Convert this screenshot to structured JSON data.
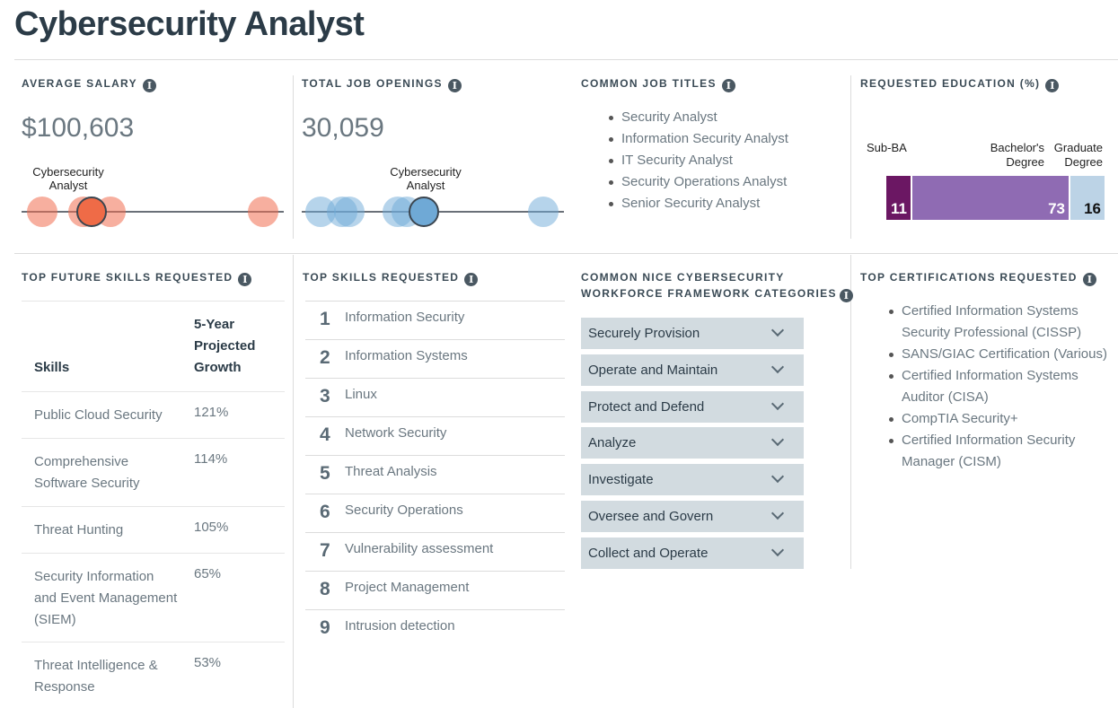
{
  "page_title": "Cybersecurity Analyst",
  "info_glyph": "i",
  "salary": {
    "heading": "AVERAGE SALARY",
    "value": "$100,603",
    "highlight_label": "Cybersecurity Analyst"
  },
  "openings": {
    "heading": "TOTAL JOB OPENINGS",
    "value": "30,059",
    "highlight_label": "Cybersecurity Analyst"
  },
  "job_titles": {
    "heading": "COMMON JOB TITLES",
    "items": [
      "Security Analyst",
      "Information Security Analyst",
      "IT Security Analyst",
      "Security Operations Analyst",
      "Senior Security Analyst"
    ]
  },
  "education": {
    "heading": "REQUESTED EDUCATION (%)",
    "labels": {
      "sub_ba": "Sub-BA",
      "bachelors": "Bachelor's Degree",
      "graduate": "Graduate Degree"
    },
    "values": {
      "sub_ba": "11",
      "bachelors": "73",
      "graduate": "16"
    },
    "colors": {
      "sub_ba": "#6b1763",
      "bachelors": "#8f6bb3",
      "graduate": "#bcd3e6"
    }
  },
  "future_skills": {
    "heading": "TOP FUTURE SKILLS REQUESTED",
    "col_skills": "Skills",
    "col_growth": "5-Year Projected Growth",
    "rows": [
      {
        "skill": "Public Cloud Security",
        "growth": "121%"
      },
      {
        "skill": "Comprehensive Software Security",
        "growth": "114%"
      },
      {
        "skill": "Threat Hunting",
        "growth": "105%"
      },
      {
        "skill": "Security Information and Event Management (SIEM)",
        "growth": "65%"
      },
      {
        "skill": "Threat Intelligence & Response",
        "growth": "53%"
      }
    ]
  },
  "top_skills": {
    "heading": "TOP SKILLS REQUESTED",
    "items": [
      {
        "n": "1",
        "label": "Information Security"
      },
      {
        "n": "2",
        "label": "Information Systems"
      },
      {
        "n": "3",
        "label": "Linux"
      },
      {
        "n": "4",
        "label": "Network Security"
      },
      {
        "n": "5",
        "label": "Threat Analysis"
      },
      {
        "n": "6",
        "label": "Security Operations"
      },
      {
        "n": "7",
        "label": "Vulnerability assessment"
      },
      {
        "n": "8",
        "label": "Project Management"
      },
      {
        "n": "9",
        "label": "Intrusion detection"
      }
    ]
  },
  "nice": {
    "heading_line1": "COMMON NICE CYBERSECURITY",
    "heading_line2": "WORKFORCE FRAMEWORK CATEGORIES",
    "items": [
      "Securely Provision",
      "Operate and Maintain",
      "Protect and Defend",
      "Analyze",
      "Investigate",
      "Oversee and Govern",
      "Collect and Operate"
    ]
  },
  "certs": {
    "heading": "TOP CERTIFICATIONS REQUESTED",
    "items": [
      "Certified Information Systems Security Professional (CISSP)",
      "SANS/GIAC Certification (Various)",
      "Certified Information Systems Auditor (CISA)",
      "CompTIA Security+",
      "Certified Information Security Manager (CISM)"
    ]
  }
}
